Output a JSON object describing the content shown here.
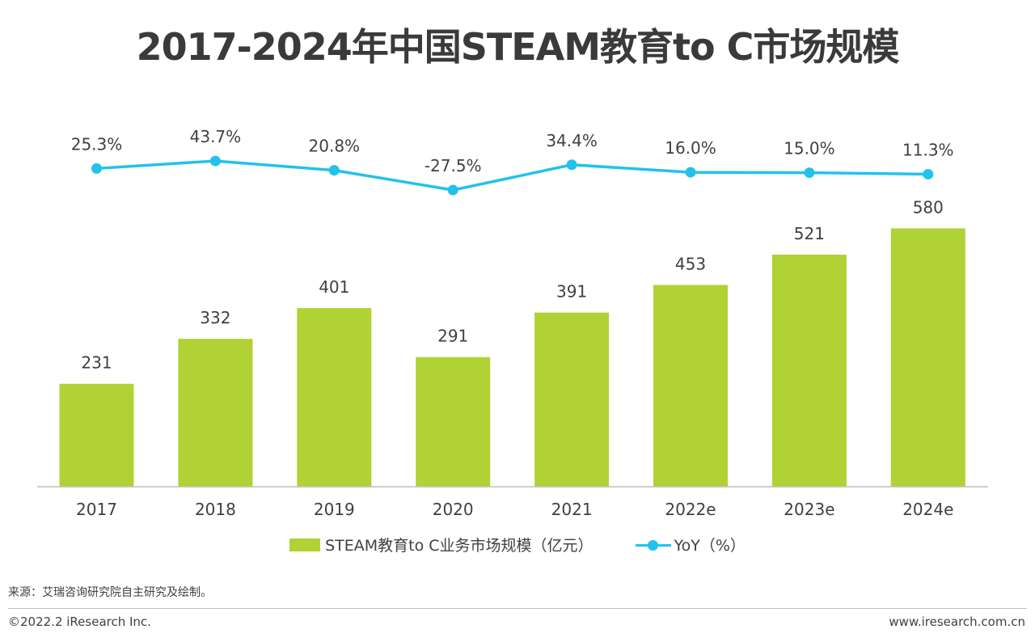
{
  "title": "2017-2024年中国STEAM教育to C市场规模",
  "colors": {
    "bar": "#b0d235",
    "line": "#22c2ec",
    "text": "#404040",
    "axis": "#bfbfbf"
  },
  "chart_data": {
    "type": "bar",
    "categories": [
      "2017",
      "2018",
      "2019",
      "2020",
      "2021",
      "2022e",
      "2023e",
      "2024e"
    ],
    "series": [
      {
        "name": "STEAM教育to C业务市场规模（亿元）",
        "type": "bar",
        "values": [
          231,
          332,
          401,
          291,
          391,
          453,
          521,
          580
        ]
      },
      {
        "name": "YoY（%）",
        "type": "line",
        "values": [
          25.3,
          43.7,
          20.8,
          -27.5,
          34.4,
          16.0,
          15.0,
          11.3
        ]
      }
    ],
    "bar_labels": [
      "231",
      "332",
      "401",
      "291",
      "391",
      "453",
      "521",
      "580"
    ],
    "line_labels": [
      "25.3%",
      "43.7%",
      "20.8%",
      "-27.5%",
      "34.4%",
      "16.0%",
      "15.0%",
      "11.3%"
    ],
    "legend_position": "bottom",
    "grid": false
  },
  "legend": {
    "bar_label": "STEAM教育to C业务市场规模（亿元）",
    "line_label": "YoY（%）"
  },
  "source": "来源：艾瑞咨询研究院自主研究及绘制。",
  "copyright": "©2022.2 iResearch Inc.",
  "website": "www.iresearch.com.cn"
}
